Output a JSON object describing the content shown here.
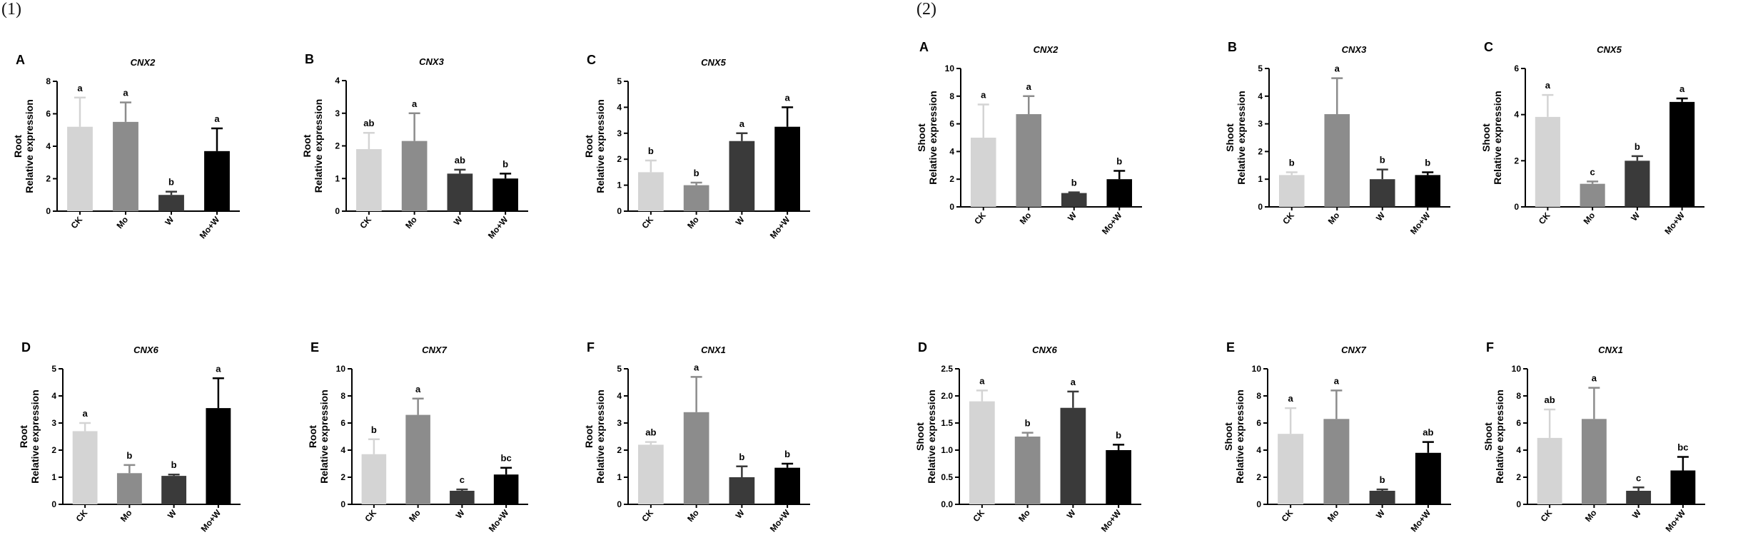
{
  "panel_headers": [
    "(1)",
    "(2)"
  ],
  "colors": {
    "CK": "#d4d4d4",
    "Mo": "#8c8c8c",
    "W": "#3a3a3a",
    "Mo+W": "#000000",
    "axis": "#000000"
  },
  "chart_data": [
    {
      "type": "bar",
      "group": "(1)",
      "panel": "A",
      "title": "CNX2",
      "ylabel": [
        "Root",
        "Relative expression"
      ],
      "categories": [
        "CK",
        "Mo",
        "W",
        "Mo+W"
      ],
      "values": [
        5.2,
        5.5,
        1.0,
        3.7
      ],
      "errors": [
        1.8,
        1.2,
        0.2,
        1.4
      ],
      "letters": [
        "a",
        "a",
        "b",
        "a"
      ],
      "ylim": [
        0,
        8
      ],
      "yticks": [
        "0",
        "2",
        "4",
        "6",
        "8"
      ]
    },
    {
      "type": "bar",
      "group": "(1)",
      "panel": "B",
      "title": "CNX3",
      "ylabel": [
        "Root",
        "Relative expression"
      ],
      "categories": [
        "CK",
        "Mo",
        "W",
        "Mo+W"
      ],
      "values": [
        1.9,
        2.15,
        1.15,
        1.0
      ],
      "errors": [
        0.5,
        0.85,
        0.12,
        0.15
      ],
      "letters": [
        "ab",
        "a",
        "ab",
        "b"
      ],
      "ylim": [
        0,
        4
      ],
      "yticks": [
        "0",
        "1",
        "2",
        "3",
        "4"
      ]
    },
    {
      "type": "bar",
      "group": "(1)",
      "panel": "C",
      "title": "CNX5",
      "ylabel": [
        "Root",
        "Relative expression"
      ],
      "categories": [
        "CK",
        "Mo",
        "W",
        "Mo+W"
      ],
      "values": [
        1.5,
        1.0,
        2.7,
        3.25
      ],
      "errors": [
        0.45,
        0.1,
        0.3,
        0.75
      ],
      "letters": [
        "b",
        "b",
        "a",
        "a"
      ],
      "ylim": [
        0,
        5
      ],
      "yticks": [
        "0",
        "1",
        "2",
        "3",
        "4",
        "5"
      ]
    },
    {
      "type": "bar",
      "group": "(1)",
      "panel": "D",
      "title": "CNX6",
      "ylabel": [
        "Root",
        "Relative expression"
      ],
      "categories": [
        "CK",
        "Mo",
        "W",
        "Mo+W"
      ],
      "values": [
        2.7,
        1.15,
        1.05,
        3.55
      ],
      "errors": [
        0.3,
        0.3,
        0.05,
        1.1
      ],
      "letters": [
        "a",
        "b",
        "b",
        "a"
      ],
      "ylim": [
        0,
        5
      ],
      "yticks": [
        "0",
        "1",
        "2",
        "3",
        "4",
        "5"
      ]
    },
    {
      "type": "bar",
      "group": "(1)",
      "panel": "E",
      "title": "CNX7",
      "ylabel": [
        "Root",
        "Relative expression"
      ],
      "categories": [
        "CK",
        "Mo",
        "W",
        "Mo+W"
      ],
      "values": [
        3.7,
        6.6,
        1.0,
        2.2
      ],
      "errors": [
        1.1,
        1.2,
        0.1,
        0.5
      ],
      "letters": [
        "b",
        "a",
        "c",
        "bc"
      ],
      "ylim": [
        0,
        10
      ],
      "yticks": [
        "0",
        "2",
        "4",
        "6",
        "8",
        "10"
      ]
    },
    {
      "type": "bar",
      "group": "(1)",
      "panel": "F",
      "title": "CNX1",
      "ylabel": [
        "Root",
        "Relative expression"
      ],
      "categories": [
        "CK",
        "Mo",
        "W",
        "Mo+W"
      ],
      "values": [
        2.2,
        3.4,
        1.0,
        1.35
      ],
      "errors": [
        0.1,
        1.3,
        0.4,
        0.15
      ],
      "letters": [
        "ab",
        "a",
        "b",
        "b"
      ],
      "ylim": [
        0,
        5
      ],
      "yticks": [
        "0",
        "1",
        "2",
        "3",
        "4",
        "5"
      ]
    },
    {
      "type": "bar",
      "group": "(2)",
      "panel": "A",
      "title": "CNX2",
      "ylabel": [
        "Shoot",
        "Relative expression"
      ],
      "categories": [
        "CK",
        "Mo",
        "W",
        "Mo+W"
      ],
      "values": [
        5.0,
        6.7,
        1.0,
        2.0
      ],
      "errors": [
        2.4,
        1.3,
        0.05,
        0.6
      ],
      "letters": [
        "a",
        "a",
        "b",
        "b"
      ],
      "ylim": [
        0,
        10
      ],
      "yticks": [
        "0",
        "2",
        "4",
        "6",
        "8",
        "10"
      ]
    },
    {
      "type": "bar",
      "group": "(2)",
      "panel": "B",
      "title": "CNX3",
      "ylabel": [
        "Shoot",
        "Relative expression"
      ],
      "categories": [
        "CK",
        "Mo",
        "W",
        "Mo+W"
      ],
      "values": [
        1.15,
        3.35,
        1.0,
        1.15
      ],
      "errors": [
        0.1,
        1.3,
        0.35,
        0.1
      ],
      "letters": [
        "b",
        "a",
        "b",
        "b"
      ],
      "ylim": [
        0,
        5
      ],
      "yticks": [
        "0",
        "1",
        "2",
        "3",
        "4",
        "5"
      ]
    },
    {
      "type": "bar",
      "group": "(2)",
      "panel": "C",
      "title": "CNX5",
      "ylabel": [
        "Shoot",
        "Relative expression"
      ],
      "categories": [
        "CK",
        "Mo",
        "W",
        "Mo+W"
      ],
      "values": [
        3.9,
        1.0,
        2.0,
        4.55
      ],
      "errors": [
        0.95,
        0.1,
        0.2,
        0.15
      ],
      "letters": [
        "a",
        "c",
        "b",
        "a"
      ],
      "ylim": [
        0,
        6
      ],
      "yticks": [
        "0",
        "2",
        "4",
        "6"
      ]
    },
    {
      "type": "bar",
      "group": "(2)",
      "panel": "D",
      "title": "CNX6",
      "ylabel": [
        "Shoot",
        "Relative expression"
      ],
      "categories": [
        "CK",
        "Mo",
        "W",
        "Mo+W"
      ],
      "values": [
        1.9,
        1.25,
        1.78,
        1.0
      ],
      "errors": [
        0.2,
        0.07,
        0.3,
        0.1
      ],
      "letters": [
        "a",
        "b",
        "a",
        "b"
      ],
      "ylim": [
        0,
        2.5
      ],
      "yticks": [
        "0.0",
        "0.5",
        "1.0",
        "1.5",
        "2.0",
        "2.5"
      ]
    },
    {
      "type": "bar",
      "group": "(2)",
      "panel": "E",
      "title": "CNX7",
      "ylabel": [
        "Shoot",
        "Relative expression"
      ],
      "categories": [
        "CK",
        "Mo",
        "W",
        "Mo+W"
      ],
      "values": [
        5.2,
        6.3,
        1.0,
        3.8
      ],
      "errors": [
        1.9,
        2.1,
        0.1,
        0.8
      ],
      "letters": [
        "a",
        "a",
        "b",
        "ab"
      ],
      "ylim": [
        0,
        10
      ],
      "yticks": [
        "0",
        "2",
        "4",
        "6",
        "8",
        "10"
      ]
    },
    {
      "type": "bar",
      "group": "(2)",
      "panel": "F",
      "title": "CNX1",
      "ylabel": [
        "Shoot",
        "Relative expression"
      ],
      "categories": [
        "CK",
        "Mo",
        "W",
        "Mo+W"
      ],
      "values": [
        4.9,
        6.3,
        1.0,
        2.5
      ],
      "errors": [
        2.1,
        2.3,
        0.25,
        1.0
      ],
      "letters": [
        "ab",
        "a",
        "c",
        "bc"
      ],
      "ylim": [
        0,
        10
      ],
      "yticks": [
        "0",
        "2",
        "4",
        "6",
        "8",
        "10"
      ]
    }
  ]
}
